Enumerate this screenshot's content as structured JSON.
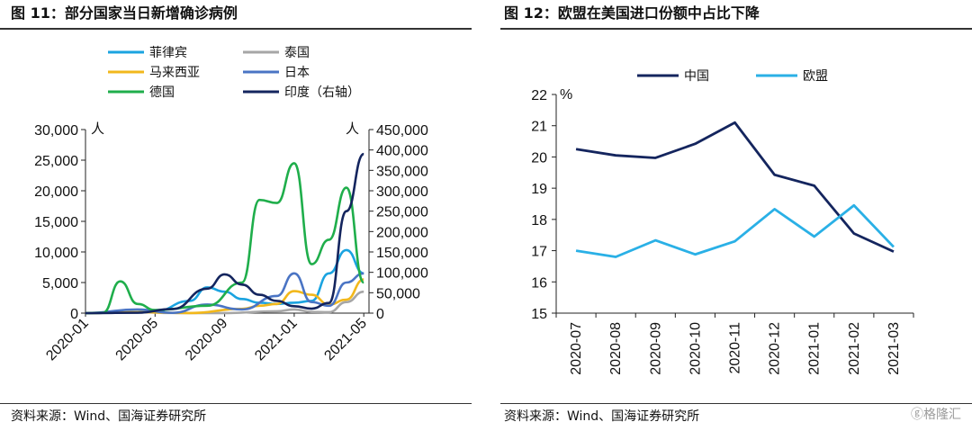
{
  "left": {
    "title": "图 11：部分国家当日新增确诊病例",
    "source": "资料来源：Wind、国海证券研究所",
    "chart_data": {
      "type": "line",
      "title": "图 11：部分国家当日新增确诊病例",
      "y_left_unit": "人",
      "y_right_unit": "人",
      "ylim_left": [
        0,
        30000
      ],
      "ylim_right": [
        0,
        450000
      ],
      "y_left_ticks": [
        "0",
        "5,000",
        "10,000",
        "15,000",
        "20,000",
        "25,000",
        "30,000"
      ],
      "y_right_ticks": [
        "0",
        "50,000",
        "100,000",
        "150,000",
        "200,000",
        "250,000",
        "300,000",
        "350,000",
        "400,000",
        "450,000"
      ],
      "x_ticks": [
        "2020-01",
        "2020-05",
        "2020-09",
        "2021-01",
        "2021-05"
      ],
      "grid": false,
      "legend_position": "top",
      "series": [
        {
          "name": "菲律宾",
          "color": "#1aa3e0",
          "axis": "left",
          "x": [
            "2020-01",
            "2020-03",
            "2020-05",
            "2020-07",
            "2020-08",
            "2020-09",
            "2020-10",
            "2020-11",
            "2020-12",
            "2021-01",
            "2021-02",
            "2021-03",
            "2021-04",
            "2021-05"
          ],
          "y": [
            0,
            100,
            300,
            2000,
            4200,
            3500,
            2300,
            1700,
            1500,
            1700,
            2000,
            6500,
            10300,
            6500
          ]
        },
        {
          "name": "泰国",
          "color": "#a6a6a6",
          "axis": "left",
          "x": [
            "2020-01",
            "2020-03",
            "2020-04",
            "2020-06",
            "2020-09",
            "2020-12",
            "2021-01",
            "2021-02",
            "2021-03",
            "2021-04",
            "2021-05"
          ],
          "y": [
            0,
            100,
            150,
            20,
            10,
            300,
            600,
            200,
            150,
            1800,
            3500
          ]
        },
        {
          "name": "马来西亚",
          "color": "#f2b81c",
          "axis": "left",
          "x": [
            "2020-01",
            "2020-04",
            "2020-07",
            "2020-10",
            "2020-11",
            "2020-12",
            "2021-01",
            "2021-02",
            "2021-03",
            "2021-04",
            "2021-05"
          ],
          "y": [
            0,
            150,
            10,
            700,
            1200,
            1500,
            3600,
            3000,
            1400,
            2200,
            5500
          ]
        },
        {
          "name": "日本",
          "color": "#4a74c4",
          "axis": "left",
          "x": [
            "2020-01",
            "2020-04",
            "2020-06",
            "2020-08",
            "2020-10",
            "2020-12",
            "2021-01",
            "2021-02",
            "2021-03",
            "2021-04",
            "2021-05"
          ],
          "y": [
            0,
            600,
            50,
            1400,
            600,
            2800,
            6500,
            1800,
            1200,
            5000,
            6500
          ]
        },
        {
          "name": "德国",
          "color": "#1fae4b",
          "axis": "left",
          "x": [
            "2020-01",
            "2020-02",
            "2020-03",
            "2020-04",
            "2020-05",
            "2020-08",
            "2020-10",
            "2020-11",
            "2020-12",
            "2021-01",
            "2021-02",
            "2021-03",
            "2021-04",
            "2021-05"
          ],
          "y": [
            0,
            50,
            5200,
            1500,
            500,
            1200,
            5000,
            18500,
            18000,
            24500,
            8000,
            12000,
            20500,
            5000
          ]
        },
        {
          "name": "印度（右轴）",
          "color": "#14255e",
          "axis": "right",
          "x": [
            "2020-01",
            "2020-04",
            "2020-06",
            "2020-08",
            "2020-09",
            "2020-10",
            "2020-11",
            "2020-12",
            "2021-01",
            "2021-02",
            "2021-03",
            "2021-04",
            "2021-05"
          ],
          "y": [
            0,
            1000,
            10000,
            60000,
            95000,
            70000,
            45000,
            30000,
            17000,
            11000,
            25000,
            250000,
            390000
          ]
        }
      ]
    }
  },
  "right": {
    "title": "图 12：欧盟在美国进口份额中占比下降",
    "source": "资料来源：Wind、国海证券研究所",
    "chart_data": {
      "type": "line",
      "title": "图 12：欧盟在美国进口份额中占比下降",
      "y_unit": "%",
      "ylim": [
        15,
        22
      ],
      "y_ticks": [
        "15",
        "16",
        "17",
        "18",
        "19",
        "20",
        "21",
        "22"
      ],
      "categories": [
        "2020-07",
        "2020-08",
        "2020-09",
        "2020-10",
        "2020-11",
        "2020-12",
        "2021-01",
        "2021-02",
        "2021-03"
      ],
      "grid": false,
      "legend_position": "top",
      "series": [
        {
          "name": "中国",
          "color": "#14255e",
          "values": [
            20.25,
            20.05,
            19.97,
            20.42,
            21.1,
            19.43,
            19.08,
            17.55,
            16.97
          ]
        },
        {
          "name": "欧盟",
          "color": "#2ab0e6",
          "values": [
            17.0,
            16.8,
            17.33,
            16.88,
            17.3,
            18.33,
            17.45,
            18.45,
            17.12
          ]
        }
      ]
    }
  },
  "watermark": "格隆汇"
}
